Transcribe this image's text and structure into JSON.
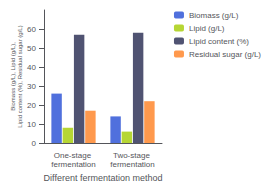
{
  "chart_data": {
    "type": "bar",
    "categories": [
      "One-stage fermentation",
      "Two-stage fermentation"
    ],
    "series": [
      {
        "name": "Biomass (g/L)",
        "values": [
          26.0,
          14.0
        ]
      },
      {
        "name": "Lipid (g/L)",
        "values": [
          8.0,
          6.0
        ]
      },
      {
        "name": "Lipid content (%)",
        "values": [
          57.0,
          58.0
        ]
      },
      {
        "name": "Residual sugar (g/L)",
        "values": [
          17.0,
          22.0
        ]
      }
    ],
    "xlabel": "Different fermentation method",
    "ylabel": "Biomass (g/L), Lipid (g/L),\nLipid content (%), Residual sugar (g/L)",
    "ylim": [
      0,
      70
    ],
    "yticks": [
      0,
      10,
      20,
      30,
      40,
      50,
      60
    ],
    "grid": false,
    "legend": "right"
  }
}
